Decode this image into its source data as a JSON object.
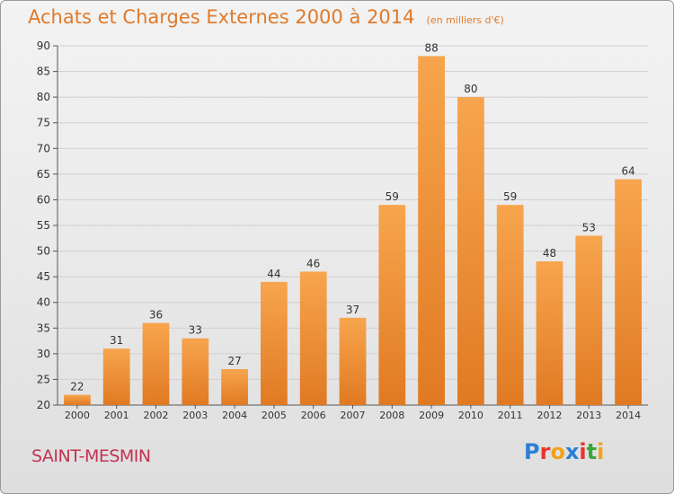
{
  "title": "Achats et Charges Externes 2000 à 2014",
  "subtitle": "(en milliers d'€)",
  "commune": "SAINT-MESMIN",
  "logo": {
    "text": "Proxiti",
    "letters": [
      {
        "ch": "P",
        "color": "#2b7fd6"
      },
      {
        "ch": "r",
        "color": "#e8342c"
      },
      {
        "ch": "o",
        "color": "#f2a21a"
      },
      {
        "ch": "x",
        "color": "#2b7fd6"
      },
      {
        "ch": "i",
        "color": "#e8342c"
      },
      {
        "ch": "t",
        "color": "#3aa83a"
      },
      {
        "ch": "i",
        "color": "#f2a21a"
      }
    ]
  },
  "colors": {
    "title": "#e07a2a",
    "bar_top": "#f7a54e",
    "bar_bottom": "#e07a22",
    "grid": "#cfcfcf",
    "axis": "#555555",
    "commune": "#c2334f"
  },
  "chart_data": {
    "type": "bar",
    "title": "Achats et Charges Externes 2000 à 2014",
    "subtitle": "(en milliers d'€)",
    "categories": [
      "2000",
      "2001",
      "2002",
      "2003",
      "2004",
      "2005",
      "2006",
      "2007",
      "2008",
      "2009",
      "2010",
      "2011",
      "2012",
      "2013",
      "2014"
    ],
    "values": [
      22,
      31,
      36,
      33,
      27,
      44,
      46,
      37,
      59,
      88,
      80,
      59,
      48,
      53,
      64
    ],
    "ylim": [
      20,
      90
    ],
    "yticks": [
      20,
      25,
      30,
      35,
      40,
      45,
      50,
      55,
      60,
      65,
      70,
      75,
      80,
      85,
      90
    ],
    "grid": true,
    "data_labels": true
  }
}
